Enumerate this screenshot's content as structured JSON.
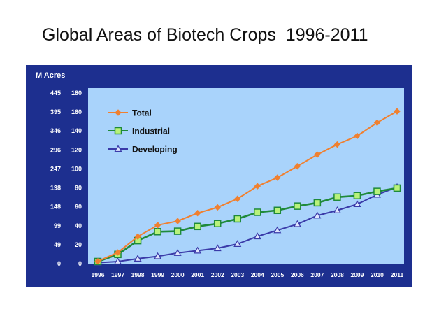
{
  "slide": {
    "title": "Global Areas of Biotech Crops  1996-2011"
  },
  "colors": {
    "panel": "#1d2f8f",
    "plot": "#a9d3fb",
    "total": "#f08030",
    "industrial": "#1f8a3a",
    "industrial_marker": "#b8f27a",
    "developing": "#3a3aa8"
  },
  "chart_data": {
    "type": "line",
    "title": "",
    "unit_label": "M Acres",
    "x": [
      1996,
      1997,
      1998,
      1999,
      2000,
      2001,
      2002,
      2003,
      2004,
      2005,
      2006,
      2007,
      2008,
      2009,
      2010,
      2011
    ],
    "x_tick_labels": [
      "1996",
      "1997",
      "1998",
      "1999",
      "2000",
      "2001",
      "2002",
      "2003",
      "2004",
      "2005",
      "2006",
      "2007",
      "2008",
      "2009",
      "2010",
      "2011"
    ],
    "ylim": [
      0,
      180
    ],
    "y_ticks_right": [
      "180",
      "160",
      "140",
      "120",
      "100",
      "80",
      "60",
      "40",
      "20",
      "0"
    ],
    "y_ticks_left": [
      "445",
      "395",
      "346",
      "296",
      "247",
      "198",
      "148",
      "99",
      "49",
      "0"
    ],
    "series": [
      {
        "name": "Total",
        "marker": "diamond",
        "values": [
          1.7,
          11,
          27.8,
          39.9,
          44.2,
          52.6,
          58.7,
          67.7,
          81,
          90,
          102,
          114.3,
          125,
          134,
          148,
          160
        ]
      },
      {
        "name": "Industrial",
        "marker": "square",
        "values": [
          1.5,
          9,
          23.5,
          33,
          33.5,
          38.5,
          41.5,
          46.5,
          53.5,
          55.5,
          60,
          63.5,
          69.5,
          71,
          75.5,
          79
        ]
      },
      {
        "name": "Developing",
        "marker": "triangle",
        "values": [
          0.3,
          1.5,
          4.5,
          7,
          10.5,
          13,
          15.5,
          20,
          28,
          34.5,
          41,
          50,
          55.5,
          62,
          72,
          80
        ]
      }
    ],
    "grid": false,
    "legend_position": "top-left"
  }
}
